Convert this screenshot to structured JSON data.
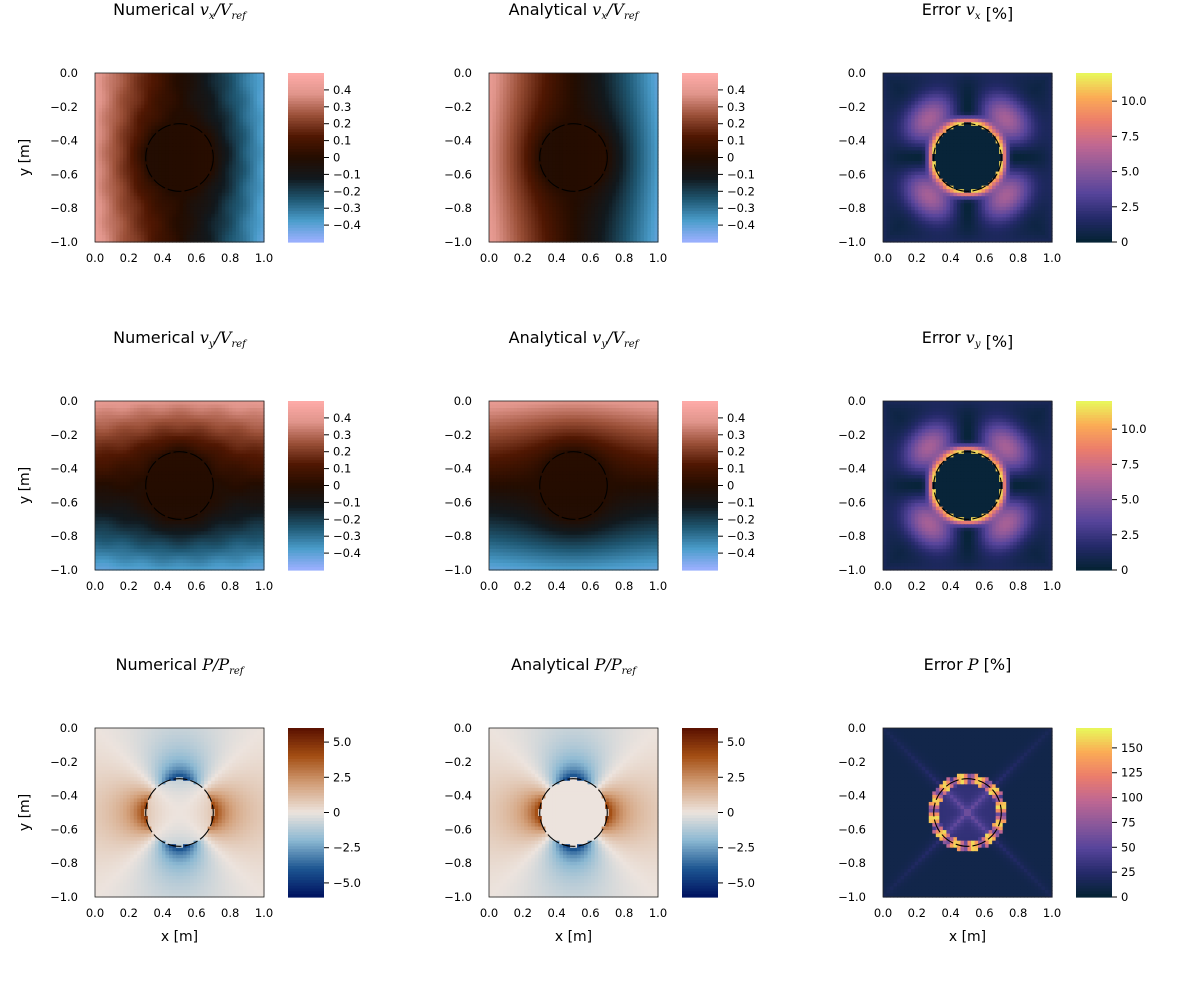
{
  "chart_data": [
    {
      "type": "heatmap",
      "field": "vx",
      "kind": "numerical",
      "title": {
        "prefix": "Numerical ",
        "math": "vx/Vref",
        "suffix": ""
      },
      "xlabel": "",
      "ylabel": "y [m]",
      "x_ticks": [
        "0.0",
        "0.2",
        "0.4",
        "0.6",
        "0.8",
        "1.0"
      ],
      "y_ticks": [
        "0.0",
        "−0.2",
        "−0.4",
        "−0.6",
        "−0.8",
        "−1.0"
      ],
      "xlim": [
        0,
        1
      ],
      "ylim": [
        -1,
        0
      ],
      "colormap": "berlin",
      "clim": [
        -0.5,
        0.5
      ],
      "colorbar_ticks": [
        {
          "v": 0.4,
          "label": "0.4"
        },
        {
          "v": 0.3,
          "label": "0.3"
        },
        {
          "v": 0.2,
          "label": "0.2"
        },
        {
          "v": 0.1,
          "label": "0.1"
        },
        {
          "v": 0,
          "label": "0"
        },
        {
          "v": -0.1,
          "label": "−0.1"
        },
        {
          "v": -0.2,
          "label": "−0.2"
        },
        {
          "v": -0.3,
          "label": "−0.3"
        },
        {
          "v": -0.4,
          "label": "−0.4"
        }
      ],
      "inclusion": {
        "center": [
          0.5,
          -0.5
        ],
        "radius": 0.2
      }
    },
    {
      "type": "heatmap",
      "field": "vx",
      "kind": "analytical",
      "title": {
        "prefix": "Analytical ",
        "math": "vx/Vref",
        "suffix": ""
      },
      "xlabel": "",
      "ylabel": "",
      "x_ticks": [
        "0.0",
        "0.2",
        "0.4",
        "0.6",
        "0.8",
        "1.0"
      ],
      "y_ticks": [
        "0.0",
        "−0.2",
        "−0.4",
        "−0.6",
        "−0.8",
        "−1.0"
      ],
      "xlim": [
        0,
        1
      ],
      "ylim": [
        -1,
        0
      ],
      "colormap": "berlin",
      "clim": [
        -0.5,
        0.5
      ],
      "colorbar_ticks": [
        {
          "v": 0.4,
          "label": "0.4"
        },
        {
          "v": 0.3,
          "label": "0.3"
        },
        {
          "v": 0.2,
          "label": "0.2"
        },
        {
          "v": 0.1,
          "label": "0.1"
        },
        {
          "v": 0,
          "label": "0"
        },
        {
          "v": -0.1,
          "label": "−0.1"
        },
        {
          "v": -0.2,
          "label": "−0.2"
        },
        {
          "v": -0.3,
          "label": "−0.3"
        },
        {
          "v": -0.4,
          "label": "−0.4"
        }
      ],
      "inclusion": {
        "center": [
          0.5,
          -0.5
        ],
        "radius": 0.2
      }
    },
    {
      "type": "heatmap",
      "field": "vx",
      "kind": "error",
      "title": {
        "prefix": "Error ",
        "math": "vx",
        "suffix": " [%]"
      },
      "xlabel": "",
      "ylabel": "",
      "x_ticks": [
        "0.0",
        "0.2",
        "0.4",
        "0.6",
        "0.8",
        "1.0"
      ],
      "y_ticks": [
        "0.0",
        "−0.2",
        "−0.4",
        "−0.6",
        "−0.8",
        "−1.0"
      ],
      "xlim": [
        0,
        1
      ],
      "ylim": [
        -1,
        0
      ],
      "colormap": "thermal",
      "clim": [
        0,
        12
      ],
      "colorbar_ticks": [
        {
          "v": 10,
          "label": "10.0"
        },
        {
          "v": 7.5,
          "label": "7.5"
        },
        {
          "v": 5,
          "label": "5.0"
        },
        {
          "v": 2.5,
          "label": "2.5"
        },
        {
          "v": 0,
          "label": "0"
        }
      ],
      "inclusion": {
        "center": [
          0.5,
          -0.5
        ],
        "radius": 0.2
      }
    },
    {
      "type": "heatmap",
      "field": "vy",
      "kind": "numerical",
      "title": {
        "prefix": "Numerical ",
        "math": "vy/Vref",
        "suffix": ""
      },
      "xlabel": "",
      "ylabel": "y [m]",
      "x_ticks": [
        "0.0",
        "0.2",
        "0.4",
        "0.6",
        "0.8",
        "1.0"
      ],
      "y_ticks": [
        "0.0",
        "−0.2",
        "−0.4",
        "−0.6",
        "−0.8",
        "−1.0"
      ],
      "xlim": [
        0,
        1
      ],
      "ylim": [
        -1,
        0
      ],
      "colormap": "berlin",
      "clim": [
        -0.5,
        0.5
      ],
      "colorbar_ticks": [
        {
          "v": 0.4,
          "label": "0.4"
        },
        {
          "v": 0.3,
          "label": "0.3"
        },
        {
          "v": 0.2,
          "label": "0.2"
        },
        {
          "v": 0.1,
          "label": "0.1"
        },
        {
          "v": 0,
          "label": "0"
        },
        {
          "v": -0.1,
          "label": "−0.1"
        },
        {
          "v": -0.2,
          "label": "−0.2"
        },
        {
          "v": -0.3,
          "label": "−0.3"
        },
        {
          "v": -0.4,
          "label": "−0.4"
        }
      ],
      "inclusion": {
        "center": [
          0.5,
          -0.5
        ],
        "radius": 0.2
      }
    },
    {
      "type": "heatmap",
      "field": "vy",
      "kind": "analytical",
      "title": {
        "prefix": "Analytical ",
        "math": "vy/Vref",
        "suffix": ""
      },
      "xlabel": "",
      "ylabel": "",
      "x_ticks": [
        "0.0",
        "0.2",
        "0.4",
        "0.6",
        "0.8",
        "1.0"
      ],
      "y_ticks": [
        "0.0",
        "−0.2",
        "−0.4",
        "−0.6",
        "−0.8",
        "−1.0"
      ],
      "xlim": [
        0,
        1
      ],
      "ylim": [
        -1,
        0
      ],
      "colormap": "berlin",
      "clim": [
        -0.5,
        0.5
      ],
      "colorbar_ticks": [
        {
          "v": 0.4,
          "label": "0.4"
        },
        {
          "v": 0.3,
          "label": "0.3"
        },
        {
          "v": 0.2,
          "label": "0.2"
        },
        {
          "v": 0.1,
          "label": "0.1"
        },
        {
          "v": 0,
          "label": "0"
        },
        {
          "v": -0.1,
          "label": "−0.1"
        },
        {
          "v": -0.2,
          "label": "−0.2"
        },
        {
          "v": -0.3,
          "label": "−0.3"
        },
        {
          "v": -0.4,
          "label": "−0.4"
        }
      ],
      "inclusion": {
        "center": [
          0.5,
          -0.5
        ],
        "radius": 0.2
      }
    },
    {
      "type": "heatmap",
      "field": "vy",
      "kind": "error",
      "title": {
        "prefix": "Error ",
        "math": "vy",
        "suffix": " [%]"
      },
      "xlabel": "",
      "ylabel": "",
      "x_ticks": [
        "0.0",
        "0.2",
        "0.4",
        "0.6",
        "0.8",
        "1.0"
      ],
      "y_ticks": [
        "0.0",
        "−0.2",
        "−0.4",
        "−0.6",
        "−0.8",
        "−1.0"
      ],
      "xlim": [
        0,
        1
      ],
      "ylim": [
        -1,
        0
      ],
      "colormap": "thermal",
      "clim": [
        0,
        12
      ],
      "colorbar_ticks": [
        {
          "v": 10,
          "label": "10.0"
        },
        {
          "v": 7.5,
          "label": "7.5"
        },
        {
          "v": 5,
          "label": "5.0"
        },
        {
          "v": 2.5,
          "label": "2.5"
        },
        {
          "v": 0,
          "label": "0"
        }
      ],
      "inclusion": {
        "center": [
          0.5,
          -0.5
        ],
        "radius": 0.2
      }
    },
    {
      "type": "heatmap",
      "field": "p",
      "kind": "numerical",
      "title": {
        "prefix": "Numerical ",
        "math": "P/Pref",
        "suffix": ""
      },
      "xlabel": "x [m]",
      "ylabel": "y [m]",
      "x_ticks": [
        "0.0",
        "0.2",
        "0.4",
        "0.6",
        "0.8",
        "1.0"
      ],
      "y_ticks": [
        "0.0",
        "−0.2",
        "−0.4",
        "−0.6",
        "−0.8",
        "−1.0"
      ],
      "xlim": [
        0,
        1
      ],
      "ylim": [
        -1,
        0
      ],
      "colormap": "vik",
      "clim": [
        -6,
        6
      ],
      "colorbar_ticks": [
        {
          "v": 5,
          "label": "5.0"
        },
        {
          "v": 2.5,
          "label": "2.5"
        },
        {
          "v": 0,
          "label": "0"
        },
        {
          "v": -2.5,
          "label": "−2.5"
        },
        {
          "v": -5,
          "label": "−5.0"
        }
      ],
      "inclusion": {
        "center": [
          0.5,
          -0.5
        ],
        "radius": 0.2
      }
    },
    {
      "type": "heatmap",
      "field": "p",
      "kind": "analytical",
      "title": {
        "prefix": "Analytical ",
        "math": "P/Pref",
        "suffix": ""
      },
      "xlabel": "x [m]",
      "ylabel": "",
      "x_ticks": [
        "0.0",
        "0.2",
        "0.4",
        "0.6",
        "0.8",
        "1.0"
      ],
      "y_ticks": [
        "0.0",
        "−0.2",
        "−0.4",
        "−0.6",
        "−0.8",
        "−1.0"
      ],
      "xlim": [
        0,
        1
      ],
      "ylim": [
        -1,
        0
      ],
      "colormap": "vik",
      "clim": [
        -6,
        6
      ],
      "colorbar_ticks": [
        {
          "v": 5,
          "label": "5.0"
        },
        {
          "v": 2.5,
          "label": "2.5"
        },
        {
          "v": 0,
          "label": "0"
        },
        {
          "v": -2.5,
          "label": "−2.5"
        },
        {
          "v": -5,
          "label": "−5.0"
        }
      ],
      "inclusion": {
        "center": [
          0.5,
          -0.5
        ],
        "radius": 0.2
      }
    },
    {
      "type": "heatmap",
      "field": "p",
      "kind": "error",
      "title": {
        "prefix": "Error ",
        "math": "P",
        "suffix": " [%]"
      },
      "xlabel": "x [m]",
      "ylabel": "",
      "x_ticks": [
        "0.0",
        "0.2",
        "0.4",
        "0.6",
        "0.8",
        "1.0"
      ],
      "y_ticks": [
        "0.0",
        "−0.2",
        "−0.4",
        "−0.6",
        "−0.8",
        "−1.0"
      ],
      "xlim": [
        0,
        1
      ],
      "ylim": [
        -1,
        0
      ],
      "colormap": "thermal",
      "clim": [
        0,
        170
      ],
      "colorbar_ticks": [
        {
          "v": 150,
          "label": "150"
        },
        {
          "v": 125,
          "label": "125"
        },
        {
          "v": 100,
          "label": "100"
        },
        {
          "v": 75,
          "label": "75"
        },
        {
          "v": 50,
          "label": "50"
        },
        {
          "v": 25,
          "label": "25"
        },
        {
          "v": 0,
          "label": "0"
        }
      ],
      "inclusion": {
        "center": [
          0.5,
          -0.5
        ],
        "radius": 0.2
      }
    }
  ],
  "colormaps": {
    "berlin": [
      "#9eb0ff",
      "#4b9dcb",
      "#1f5873",
      "#11191e",
      "#240c00",
      "#501702",
      "#9b5038",
      "#e0958b",
      "#ffaca9"
    ],
    "thermal": [
      "#042333",
      "#252a6a",
      "#56449b",
      "#8a589b",
      "#c06792",
      "#ec7d6b",
      "#fbac55",
      "#e8fa5b"
    ],
    "vik": [
      "#001260",
      "#1c5591",
      "#8bb8d2",
      "#ece3dd",
      "#d3a07a",
      "#a44e13",
      "#591000"
    ]
  }
}
